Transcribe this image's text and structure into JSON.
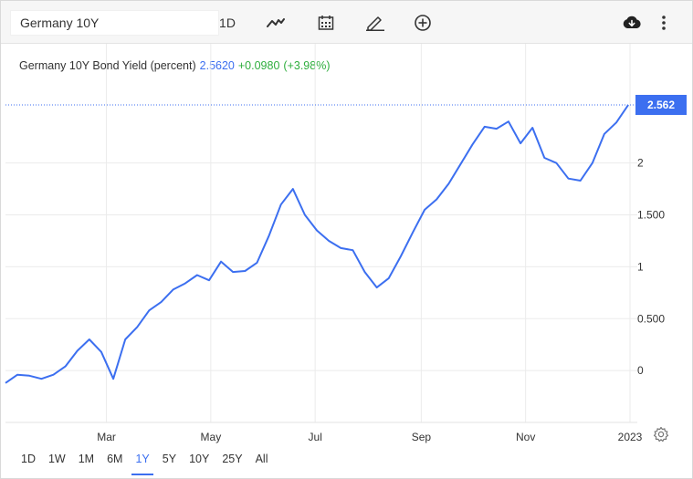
{
  "toolbar": {
    "symbol": "Germany 10Y",
    "interval": "1D",
    "icons": [
      "line-chart-icon",
      "calendar-icon",
      "pencil-icon",
      "add-circle-icon",
      "download-icon",
      "more-vertical-icon"
    ]
  },
  "info": {
    "name": "Germany 10Y Bond Yield (percent)",
    "price": "2.5620",
    "change": "+0.0980",
    "change_pct": "(+3.98%)"
  },
  "ranges": [
    {
      "label": "1D",
      "active": false
    },
    {
      "label": "1W",
      "active": false
    },
    {
      "label": "1M",
      "active": false
    },
    {
      "label": "6M",
      "active": false
    },
    {
      "label": "1Y",
      "active": true
    },
    {
      "label": "5Y",
      "active": false
    },
    {
      "label": "10Y",
      "active": false
    },
    {
      "label": "25Y",
      "active": false
    },
    {
      "label": "All",
      "active": false
    }
  ],
  "colors": {
    "line": "#3c6ff0",
    "positive": "#2fae3e",
    "grid": "#ebebeb"
  },
  "chart_data": {
    "type": "line",
    "title": "Germany 10Y Bond Yield (percent)",
    "xlabel": "",
    "ylabel": "",
    "y_ticks": [
      "0",
      "0.500",
      "1",
      "1.500",
      "2"
    ],
    "y_tick_values": [
      0,
      0.5,
      1,
      1.5,
      2
    ],
    "x_ticks": [
      "Mar",
      "May",
      "Jul",
      "Sep",
      "Nov",
      "2023"
    ],
    "x_tick_dates": [
      "2022-03-01",
      "2022-05-01",
      "2022-07-01",
      "2022-09-01",
      "2022-11-01",
      "2023-01-01"
    ],
    "xlim": [
      "2022-01-01",
      "2023-01-01"
    ],
    "ylim": [
      -0.5,
      2.85
    ],
    "last_value_label": "2.562",
    "grid": true,
    "series": [
      {
        "x": [
          "2022-01-01",
          "2022-01-08",
          "2022-01-15",
          "2022-01-22",
          "2022-01-29",
          "2022-02-05",
          "2022-02-12",
          "2022-02-19",
          "2022-02-26",
          "2022-03-05",
          "2022-03-12",
          "2022-03-19",
          "2022-03-26",
          "2022-04-02",
          "2022-04-09",
          "2022-04-16",
          "2022-04-23",
          "2022-04-30",
          "2022-05-07",
          "2022-05-14",
          "2022-05-21",
          "2022-05-28",
          "2022-06-04",
          "2022-06-11",
          "2022-06-18",
          "2022-06-25",
          "2022-07-02",
          "2022-07-09",
          "2022-07-16",
          "2022-07-23",
          "2022-07-30",
          "2022-08-06",
          "2022-08-13",
          "2022-08-20",
          "2022-08-27",
          "2022-09-03",
          "2022-09-10",
          "2022-09-17",
          "2022-09-24",
          "2022-10-01",
          "2022-10-08",
          "2022-10-15",
          "2022-10-22",
          "2022-10-29",
          "2022-11-05",
          "2022-11-12",
          "2022-11-19",
          "2022-11-26",
          "2022-12-03",
          "2022-12-10",
          "2022-12-17",
          "2022-12-24",
          "2022-12-31"
        ],
        "values": [
          -0.12,
          -0.04,
          -0.05,
          -0.08,
          -0.04,
          0.04,
          0.19,
          0.3,
          0.18,
          -0.08,
          0.3,
          0.42,
          0.58,
          0.66,
          0.78,
          0.84,
          0.92,
          0.87,
          1.05,
          0.95,
          0.96,
          1.04,
          1.3,
          1.6,
          1.75,
          1.5,
          1.35,
          1.25,
          1.18,
          1.16,
          0.95,
          0.8,
          0.89,
          1.1,
          1.33,
          1.55,
          1.65,
          1.8,
          1.99,
          2.18,
          2.35,
          2.33,
          2.4,
          2.19,
          2.34,
          2.05,
          2.0,
          1.85,
          1.83,
          2.0,
          2.28,
          2.39,
          2.56
        ]
      }
    ]
  }
}
